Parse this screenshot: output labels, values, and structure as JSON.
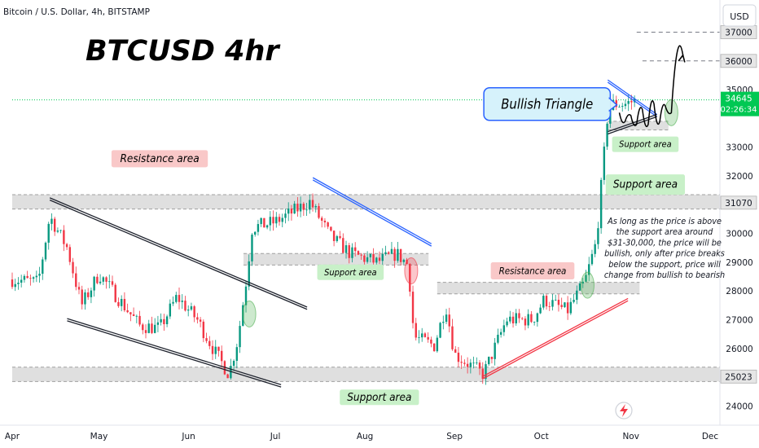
{
  "symbol_header": "Bitcoin / U.S. Dollar, 4h, BITSTAMP",
  "title": "BTCUSD 4hr",
  "currency": "USD",
  "price_axis": {
    "ticks": [
      37000,
      36000,
      35000,
      34000,
      33000,
      32000,
      31000,
      30000,
      29000,
      28000,
      27000,
      26000,
      25000,
      24000
    ],
    "tick_labels": [
      "37000",
      "36000",
      "35000",
      "",
      "33000",
      "32000",
      "",
      "30000",
      "29000",
      "28000",
      "27000",
      "26000",
      "",
      "24000"
    ],
    "highlight_labels": [
      {
        "label": "31070",
        "value": 31070
      },
      {
        "label": "25023",
        "value": 25023
      },
      {
        "label": "37000",
        "value": 37000
      },
      {
        "label": "36000",
        "value": 36000
      }
    ],
    "current_price": {
      "label": "34645",
      "value": 34645,
      "countdown": "02:26:34",
      "color": "#00c853"
    }
  },
  "time_axis": {
    "labels": [
      "Apr",
      "May",
      "Jun",
      "Jul",
      "Aug",
      "Sep",
      "Oct",
      "Nov",
      "Dec"
    ]
  },
  "chart_data": {
    "type": "candlestick",
    "title": "BTCUSD 4hr",
    "ylim": [
      23600,
      37600
    ],
    "xlim": [
      "2023-04-01",
      "2023-12-01"
    ],
    "grid": false,
    "colors": {
      "up": "#089981",
      "down": "#f23645"
    },
    "price_path": [
      {
        "date": "2023-04-01",
        "close": 28400
      },
      {
        "date": "2023-04-10",
        "close": 28300
      },
      {
        "date": "2023-04-14",
        "close": 30600
      },
      {
        "date": "2023-04-20",
        "close": 29500
      },
      {
        "date": "2023-04-25",
        "close": 27500
      },
      {
        "date": "2023-05-01",
        "close": 28600
      },
      {
        "date": "2023-05-08",
        "close": 27700
      },
      {
        "date": "2023-05-15",
        "close": 26800
      },
      {
        "date": "2023-05-22",
        "close": 26700
      },
      {
        "date": "2023-05-28",
        "close": 27800
      },
      {
        "date": "2023-06-04",
        "close": 27000
      },
      {
        "date": "2023-06-10",
        "close": 25900
      },
      {
        "date": "2023-06-15",
        "close": 25100
      },
      {
        "date": "2023-06-18",
        "close": 26300
      },
      {
        "date": "2023-06-21",
        "close": 28400
      },
      {
        "date": "2023-06-23",
        "close": 30200
      },
      {
        "date": "2023-07-01",
        "close": 30400
      },
      {
        "date": "2023-07-13",
        "close": 31100
      },
      {
        "date": "2023-07-20",
        "close": 29900
      },
      {
        "date": "2023-07-27",
        "close": 29300
      },
      {
        "date": "2023-08-05",
        "close": 29000
      },
      {
        "date": "2023-08-12",
        "close": 29300
      },
      {
        "date": "2023-08-16",
        "close": 28900
      },
      {
        "date": "2023-08-18",
        "close": 26400
      },
      {
        "date": "2023-08-25",
        "close": 26100
      },
      {
        "date": "2023-08-29",
        "close": 27500
      },
      {
        "date": "2023-09-01",
        "close": 25800
      },
      {
        "date": "2023-09-11",
        "close": 25100
      },
      {
        "date": "2023-09-19",
        "close": 27000
      },
      {
        "date": "2023-09-28",
        "close": 27000
      },
      {
        "date": "2023-10-02",
        "close": 27700
      },
      {
        "date": "2023-10-10",
        "close": 27300
      },
      {
        "date": "2023-10-16",
        "close": 28300
      },
      {
        "date": "2023-10-20",
        "close": 29700
      },
      {
        "date": "2023-10-24",
        "close": 34200
      },
      {
        "date": "2023-10-26",
        "close": 34500
      },
      {
        "date": "2023-10-30",
        "close": 34500
      },
      {
        "date": "2023-11-03",
        "close": 34645
      }
    ],
    "zones": [
      {
        "name": "resistance-zone-upper",
        "from": 30850,
        "to": 31350,
        "start": "2023-04-01"
      },
      {
        "name": "support-zone-lower",
        "from": 24850,
        "to": 25350,
        "start": "2023-04-01"
      },
      {
        "name": "support-zone-jul",
        "from": 28900,
        "to": 29300,
        "start": "2023-06-20",
        "end": "2023-08-23"
      },
      {
        "name": "resistance-zone-sep",
        "from": 27900,
        "to": 28300,
        "start": "2023-08-26",
        "end": "2023-11-04"
      },
      {
        "name": "support-zone-oct",
        "from": 33600,
        "to": 33900,
        "start": "2023-10-24",
        "end": "2023-11-14"
      }
    ],
    "trendlines": [
      {
        "name": "wedge-upper-line",
        "color": "#1e222d",
        "p1": {
          "date": "2023-04-14",
          "value": 31200
        },
        "p2": {
          "date": "2023-07-12",
          "value": 27400
        }
      },
      {
        "name": "wedge-lower-line",
        "color": "#1e222d",
        "p1": {
          "date": "2023-04-20",
          "value": 27000
        },
        "p2": {
          "date": "2023-07-03",
          "value": 24700
        }
      },
      {
        "name": "downtrend-blue-line",
        "color": "#2962ff",
        "p1": {
          "date": "2023-07-14",
          "value": 31900
        },
        "p2": {
          "date": "2023-08-24",
          "value": 29600
        }
      },
      {
        "name": "uptrend-red-line",
        "color": "#f23645",
        "p1": {
          "date": "2023-09-11",
          "value": 25000
        },
        "p2": {
          "date": "2023-10-31",
          "value": 27700
        }
      },
      {
        "name": "triangle-upper-line",
        "color": "#2962ff",
        "p1": {
          "date": "2023-10-24",
          "value": 35300
        },
        "p2": {
          "date": "2023-11-10",
          "value": 34100
        }
      },
      {
        "name": "triangle-lower-line",
        "color": "#1e222d",
        "p1": {
          "date": "2023-10-24",
          "value": 33500
        },
        "p2": {
          "date": "2023-11-10",
          "value": 34100
        }
      }
    ],
    "levels": [
      {
        "name": "target-level-37000",
        "value": 37000,
        "start": "2023-11-03"
      },
      {
        "name": "target-level-36000",
        "value": 36000,
        "start": "2023-11-05"
      },
      {
        "name": "current-price-line",
        "value": 34645,
        "start": "2023-04-01"
      }
    ],
    "projection_path": [
      {
        "date": "2023-10-28",
        "value": 34200
      },
      {
        "date": "2023-10-30",
        "value": 33900
      },
      {
        "date": "2023-11-01",
        "value": 34100
      },
      {
        "date": "2023-11-03",
        "value": 33800
      },
      {
        "date": "2023-11-05",
        "value": 34300
      },
      {
        "date": "2023-11-07",
        "value": 33800
      },
      {
        "date": "2023-11-09",
        "value": 34500
      },
      {
        "date": "2023-11-11",
        "value": 33900
      },
      {
        "date": "2023-11-13",
        "value": 34400
      },
      {
        "date": "2023-11-15",
        "value": 34200
      },
      {
        "date": "2023-11-19",
        "value": 36200
      }
    ],
    "highlights": [
      {
        "name": "breakout-marker-june",
        "date": "2023-06-22",
        "value": 27200,
        "color": "#4caf50"
      },
      {
        "name": "breakdown-marker-aug",
        "date": "2023-08-17",
        "value": 28700,
        "color": "#f23645"
      },
      {
        "name": "breakout-marker-oct",
        "date": "2023-10-17",
        "value": 28200,
        "color": "#4caf50"
      },
      {
        "name": "breakout-marker-nov",
        "date": "2023-11-15",
        "value": 34200,
        "color": "#4caf50"
      }
    ],
    "annotations": [
      {
        "name": "resistance-area-label-top",
        "text": "Resistance area",
        "type": "resistance",
        "date": "2023-05-22",
        "value": 32600
      },
      {
        "name": "support-area-label-bottom",
        "text": "Support area",
        "type": "support",
        "date": "2023-08-06",
        "value": 24300
      },
      {
        "name": "support-area-label-jul",
        "text": "Support area",
        "type": "support",
        "date": "2023-07-27",
        "value": 28650
      },
      {
        "name": "resistance-area-label-sep",
        "text": "Resistance area",
        "type": "resistance",
        "date": "2023-09-28",
        "value": 28700
      },
      {
        "name": "support-area-label-oct",
        "text": "Support area",
        "type": "support",
        "date": "2023-11-06",
        "value": 33100
      },
      {
        "name": "support-area-label-right",
        "text": "Support area",
        "type": "support-big",
        "date": "2023-11-06",
        "value": 31700
      },
      {
        "name": "bullish-triangle-label",
        "text": "Bullish Triangle",
        "type": "callout",
        "date": "2023-10-03",
        "value": 34500
      }
    ],
    "note": [
      "As long as the price is above",
      "the support area around",
      "$31-30,000, the price will be",
      "bullish, only after price breaks",
      "below the support, price will",
      "change from bullish to bearish"
    ]
  }
}
